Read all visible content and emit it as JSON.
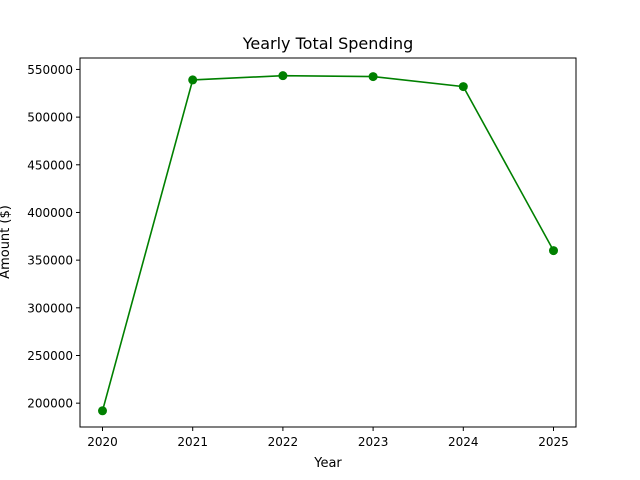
{
  "chart_data": {
    "type": "line",
    "title": "Yearly Total Spending",
    "xlabel": "Year",
    "ylabel": "Amount ($)",
    "categories": [
      "2020",
      "2021",
      "2022",
      "2023",
      "2024",
      "2025"
    ],
    "series": [
      {
        "values": [
          192000,
          539000,
          543500,
          542500,
          532000,
          360000
        ],
        "color": "#008000",
        "marker": "circle"
      }
    ],
    "ylim": [
      175000,
      562000
    ],
    "yticks": [
      200000,
      250000,
      300000,
      350000,
      400000,
      450000,
      500000,
      550000
    ],
    "grid": false,
    "legend": "none"
  }
}
